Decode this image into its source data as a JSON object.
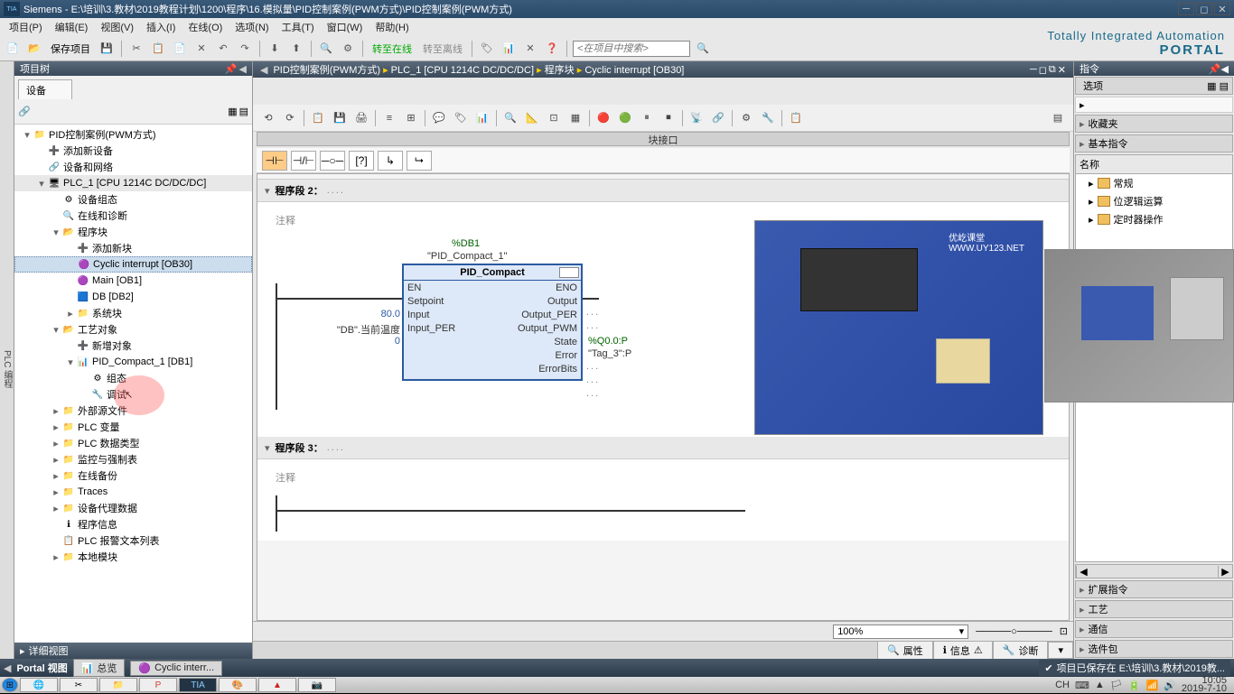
{
  "title": "Siemens  -  E:\\培训\\3.教材\\2019教程计划\\1200\\程序\\16.模拟量\\PID控制案例(PWM方式)\\PID控制案例(PWM方式)",
  "logo": "TIA\nV14",
  "menu": [
    "项目(P)",
    "编辑(E)",
    "视图(V)",
    "插入(I)",
    "在线(O)",
    "选项(N)",
    "工具(T)",
    "窗口(W)",
    "帮助(H)"
  ],
  "toolbar": {
    "save_label": "保存项目",
    "online_label": "转至在线",
    "offline_label": "转至离线",
    "search_ph": "<在项目中搜索>"
  },
  "brand": {
    "l1": "Totally Integrated Automation",
    "l2": "PORTAL"
  },
  "leftbar": "PLC 编程",
  "projtree": {
    "title": "项目树",
    "tab": "设备",
    "detail": "详细视图",
    "nodes": [
      {
        "d": 0,
        "tw": "▾",
        "ic": "📁",
        "t": "PID控制案例(PWM方式)"
      },
      {
        "d": 1,
        "tw": "",
        "ic": "➕",
        "t": "添加新设备"
      },
      {
        "d": 1,
        "tw": "",
        "ic": "🔗",
        "t": "设备和网络"
      },
      {
        "d": 1,
        "tw": "▾",
        "ic": "🖥",
        "t": "PLC_1 [CPU 1214C DC/DC/DC]",
        "hl": true
      },
      {
        "d": 2,
        "tw": "",
        "ic": "⚙",
        "t": "设备组态"
      },
      {
        "d": 2,
        "tw": "",
        "ic": "🔍",
        "t": "在线和诊断"
      },
      {
        "d": 2,
        "tw": "▾",
        "ic": "📂",
        "t": "程序块"
      },
      {
        "d": 3,
        "tw": "",
        "ic": "➕",
        "t": "添加新块"
      },
      {
        "d": 3,
        "tw": "",
        "ic": "🟣",
        "t": "Cyclic interrupt [OB30]",
        "sel": true
      },
      {
        "d": 3,
        "tw": "",
        "ic": "🟣",
        "t": "Main [OB1]"
      },
      {
        "d": 3,
        "tw": "",
        "ic": "🟦",
        "t": "DB [DB2]"
      },
      {
        "d": 3,
        "tw": "▸",
        "ic": "📁",
        "t": "系统块"
      },
      {
        "d": 2,
        "tw": "▾",
        "ic": "📂",
        "t": "工艺对象"
      },
      {
        "d": 3,
        "tw": "",
        "ic": "➕",
        "t": "新增对象"
      },
      {
        "d": 3,
        "tw": "▾",
        "ic": "📊",
        "t": "PID_Compact_1 [DB1]"
      },
      {
        "d": 4,
        "tw": "",
        "ic": "⚙",
        "t": "组态"
      },
      {
        "d": 4,
        "tw": "",
        "ic": "🔧",
        "t": "调试",
        "cursor": true
      },
      {
        "d": 2,
        "tw": "▸",
        "ic": "📁",
        "t": "外部源文件"
      },
      {
        "d": 2,
        "tw": "▸",
        "ic": "📁",
        "t": "PLC 变量"
      },
      {
        "d": 2,
        "tw": "▸",
        "ic": "📁",
        "t": "PLC 数据类型"
      },
      {
        "d": 2,
        "tw": "▸",
        "ic": "📁",
        "t": "监控与强制表"
      },
      {
        "d": 2,
        "tw": "▸",
        "ic": "📁",
        "t": "在线备份"
      },
      {
        "d": 2,
        "tw": "▸",
        "ic": "📁",
        "t": "Traces"
      },
      {
        "d": 2,
        "tw": "▸",
        "ic": "📁",
        "t": "设备代理数据"
      },
      {
        "d": 2,
        "tw": "",
        "ic": "ℹ",
        "t": "程序信息"
      },
      {
        "d": 2,
        "tw": "",
        "ic": "📋",
        "t": "PLC 报警文本列表"
      },
      {
        "d": 2,
        "tw": "▸",
        "ic": "📁",
        "t": "本地模块"
      }
    ]
  },
  "editor": {
    "crumbs": [
      "PID控制案例(PWM方式)",
      "PLC_1 [CPU 1214C DC/DC/DC]",
      "程序块",
      "Cyclic interrupt [OB30]"
    ],
    "interface": "块接口",
    "seg2": "程序段 2：",
    "seg3": "程序段 3：",
    "comment": "注释",
    "fb": {
      "db": "%DB1",
      "inst": "\"PID_Compact_1\"",
      "name": "PID_Compact",
      "left": [
        "EN",
        "Setpoint",
        "Input",
        "Input_PER"
      ],
      "right": [
        "ENO",
        "Output",
        "Output_PER",
        "Output_PWM",
        "State",
        "Error",
        "ErrorBits"
      ],
      "in_sp": "80.0",
      "in_input": "\"DB\".当前温度",
      "in_per": "0",
      "out_pwm_addr": "%Q0.0:P",
      "out_pwm_tag": "\"Tag_3\":P"
    },
    "zoom": "100%",
    "tabs": {
      "prop": "属性",
      "info": "信息",
      "diag": "诊断"
    }
  },
  "right": {
    "title": "指令",
    "secs": [
      "选项",
      "收藏夹",
      "基本指令"
    ],
    "colhdr": "名称",
    "items": [
      "常规",
      "位逻辑运算",
      "定时器操作"
    ],
    "secs2": [
      "扩展指令",
      "工艺",
      "通信",
      "选件包"
    ]
  },
  "bottom": {
    "portal": "Portal 视图",
    "ov": "总览",
    "cyc": "Cyclic interr...",
    "status": "项目已保存在 E:\\培训\\3.教材\\2019教..."
  },
  "taskbar": {
    "ime": "CH",
    "time": "10:05",
    "date": "2019-7-10"
  }
}
